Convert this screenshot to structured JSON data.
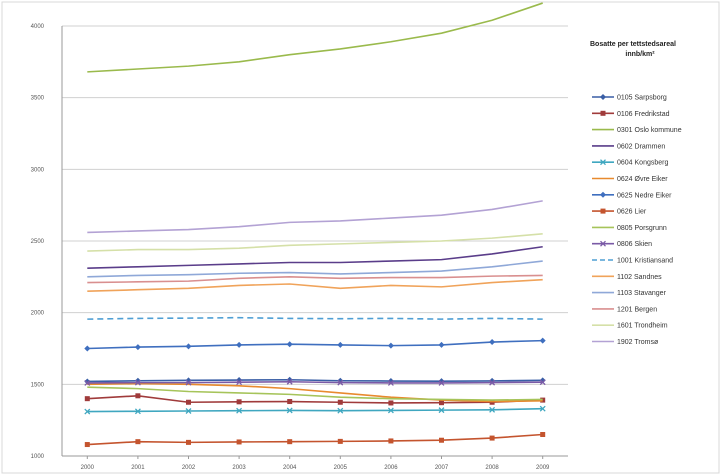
{
  "chart_data": {
    "type": "line",
    "title": "Bosatte per tettstedsareal innb/km²",
    "title_lines": [
      "Bosatte per tettstedsareal",
      "innb/km²"
    ],
    "x": [
      "2000",
      "2001",
      "2002",
      "2003",
      "2004",
      "2005",
      "2006",
      "2007",
      "2008",
      "2009"
    ],
    "ylim": [
      1000,
      4000
    ],
    "yticks": [
      "1000",
      "1500",
      "2000",
      "2500",
      "3000",
      "3500",
      "4000"
    ],
    "grid": true,
    "legend_position": "right",
    "series": [
      {
        "name": "0105 Sarpsborg",
        "color": "#3a5fa6",
        "marker": "diamond",
        "dash": "",
        "values": [
          1520,
          1525,
          1528,
          1530,
          1532,
          1525,
          1523,
          1522,
          1524,
          1528
        ]
      },
      {
        "name": "0106 Fredrikstad",
        "color": "#a03b3b",
        "marker": "square",
        "dash": "",
        "values": [
          1400,
          1420,
          1375,
          1378,
          1380,
          1375,
          1370,
          1372,
          1375,
          1390
        ]
      },
      {
        "name": "0301 Oslo kommune",
        "color": "#9aba4c",
        "marker": "",
        "dash": "",
        "values": [
          3680,
          3700,
          3720,
          3750,
          3800,
          3840,
          3890,
          3950,
          4040,
          4160
        ]
      },
      {
        "name": "0602 Drammen",
        "color": "#5a3d8a",
        "marker": "",
        "dash": "",
        "values": [
          2310,
          2320,
          2330,
          2340,
          2350,
          2350,
          2360,
          2370,
          2410,
          2460
        ]
      },
      {
        "name": "0604 Kongsberg",
        "color": "#3fa7c0",
        "marker": "x",
        "dash": "",
        "values": [
          1310,
          1312,
          1314,
          1316,
          1318,
          1316,
          1318,
          1320,
          1322,
          1330
        ]
      },
      {
        "name": "0624 Øvre Eiker",
        "color": "#e88a2e",
        "marker": "",
        "dash": "",
        "values": [
          1500,
          1505,
          1500,
          1490,
          1470,
          1440,
          1410,
          1390,
          1380,
          1385
        ]
      },
      {
        "name": "0625 Nedre Eiker",
        "color": "#3f6fbf",
        "marker": "diamond",
        "dash": "",
        "values": [
          1750,
          1760,
          1765,
          1775,
          1780,
          1775,
          1770,
          1775,
          1795,
          1805
        ]
      },
      {
        "name": "0626 Lier",
        "color": "#c4542e",
        "marker": "square",
        "dash": "",
        "values": [
          1080,
          1100,
          1095,
          1098,
          1100,
          1102,
          1105,
          1110,
          1125,
          1150
        ]
      },
      {
        "name": "0805 Porsgrunn",
        "color": "#a6c45a",
        "marker": "",
        "dash": "",
        "values": [
          1480,
          1470,
          1450,
          1440,
          1430,
          1410,
          1400,
          1395,
          1390,
          1395
        ]
      },
      {
        "name": "0806 Skien",
        "color": "#7a5aa6",
        "marker": "x",
        "dash": "",
        "values": [
          1510,
          1512,
          1512,
          1515,
          1518,
          1512,
          1510,
          1510,
          1512,
          1515
        ]
      },
      {
        "name": "1001 Kristiansand",
        "color": "#4f9fd4",
        "marker": "",
        "dash": "dashed",
        "values": [
          1955,
          1960,
          1962,
          1965,
          1960,
          1958,
          1960,
          1955,
          1960,
          1955
        ]
      },
      {
        "name": "1102 Sandnes",
        "color": "#f0a35a",
        "marker": "",
        "dash": "",
        "values": [
          2150,
          2160,
          2170,
          2190,
          2200,
          2170,
          2190,
          2180,
          2210,
          2230
        ]
      },
      {
        "name": "1103 Stavanger",
        "color": "#8fa8d8",
        "marker": "",
        "dash": "",
        "values": [
          2250,
          2260,
          2265,
          2275,
          2280,
          2270,
          2280,
          2290,
          2320,
          2360
        ]
      },
      {
        "name": "1201 Bergen",
        "color": "#d98f8f",
        "marker": "",
        "dash": "",
        "values": [
          2210,
          2215,
          2220,
          2240,
          2250,
          2240,
          2245,
          2245,
          2255,
          2260
        ]
      },
      {
        "name": "1601 Trondheim",
        "color": "#d5e0a8",
        "marker": "",
        "dash": "",
        "values": [
          2430,
          2440,
          2440,
          2450,
          2470,
          2480,
          2490,
          2500,
          2520,
          2550
        ]
      },
      {
        "name": "1902 Tromsø",
        "color": "#b3a2d4",
        "marker": "",
        "dash": "",
        "values": [
          2560,
          2570,
          2580,
          2600,
          2630,
          2640,
          2660,
          2680,
          2720,
          2780
        ]
      }
    ]
  }
}
